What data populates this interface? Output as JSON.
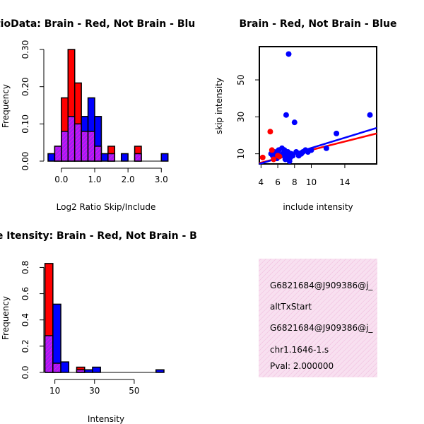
{
  "colors": {
    "red": "#ff0000",
    "blue": "#0000ff",
    "purple_hatch": "#a020f0",
    "info_bg": "#f8e0f0",
    "pval": "#cc0000"
  },
  "chart_data": [
    {
      "type": "bar",
      "title": "RatioData: Brain - Red, Not Brain - Blu",
      "xlabel": "Log2 Ratio Skip/Include",
      "ylabel": "Frequency",
      "xlim": [
        -0.4,
        3.1
      ],
      "ylim": [
        0,
        0.3
      ],
      "xticks": [
        "0.0",
        "1.0",
        "2.0",
        "3.0"
      ],
      "xtick_values": [
        0,
        1,
        2,
        3
      ],
      "yticks": [
        "0.00",
        "0.10",
        "0.20",
        "0.30"
      ],
      "ytick_values": [
        0,
        0.1,
        0.2,
        0.3
      ],
      "bin_start": -0.4,
      "bin_width": 0.2,
      "series": [
        {
          "name": "Brain",
          "color": "red",
          "values": [
            0.0,
            0.04,
            0.17,
            0.3,
            0.21,
            0.08,
            0.08,
            0.04,
            0.0,
            0.04,
            0.0,
            0.0,
            0.0,
            0.04,
            0.0,
            0.0,
            0.0,
            0.0
          ]
        },
        {
          "name": "Not Brain",
          "color": "blue",
          "values": [
            0.02,
            0.04,
            0.08,
            0.12,
            0.1,
            0.12,
            0.17,
            0.12,
            0.02,
            0.02,
            0.0,
            0.02,
            0.0,
            0.02,
            0.0,
            0.0,
            0.0,
            0.02
          ]
        }
      ]
    },
    {
      "type": "scatter",
      "title": "Brain - Red, Not Brain - Blue",
      "xlabel": "include intensity",
      "ylabel": "skip intensity",
      "xlim": [
        3.8,
        17.8
      ],
      "ylim": [
        4.5,
        68
      ],
      "xticks": [
        "4",
        "6",
        "8",
        "10",
        "14"
      ],
      "xtick_values": [
        4,
        6,
        8,
        10,
        14
      ],
      "yticks": [
        "10",
        "30",
        "50"
      ],
      "ytick_values": [
        10,
        30,
        50
      ],
      "series": [
        {
          "name": "Brain",
          "color": "red",
          "points": [
            [
              4.2,
              8.0
            ],
            [
              5.1,
              22.0
            ],
            [
              5.3,
              12.0
            ],
            [
              5.5,
              7.0
            ],
            [
              6.0,
              9.0
            ],
            [
              6.2,
              8.5
            ]
          ],
          "fit": {
            "x": [
              3.8,
              17.8
            ],
            "y": [
              5.0,
              21.0
            ]
          }
        },
        {
          "name": "Not Brain",
          "color": "blue",
          "points": [
            [
              7.3,
              64.0
            ],
            [
              7.0,
              31.0
            ],
            [
              8.0,
              27.0
            ],
            [
              17.0,
              31.0
            ],
            [
              13.0,
              21.0
            ],
            [
              11.8,
              13.0
            ],
            [
              5.2,
              10.0
            ],
            [
              5.4,
              9.0
            ],
            [
              5.6,
              11.0
            ],
            [
              5.8,
              8.0
            ],
            [
              6.0,
              10.0
            ],
            [
              6.1,
              12.0
            ],
            [
              6.3,
              9.0
            ],
            [
              6.5,
              13.0
            ],
            [
              6.6,
              10.0
            ],
            [
              6.8,
              12.0
            ],
            [
              7.0,
              9.0
            ],
            [
              7.2,
              11.0
            ],
            [
              7.5,
              8.0
            ],
            [
              7.6,
              10.0
            ],
            [
              7.8,
              9.0
            ],
            [
              8.2,
              11.0
            ],
            [
              8.5,
              9.0
            ],
            [
              8.8,
              10.0
            ],
            [
              9.0,
              11.0
            ],
            [
              9.3,
              12.0
            ],
            [
              9.6,
              11.0
            ],
            [
              6.9,
              7.0
            ],
            [
              7.4,
              6.0
            ],
            [
              5.9,
              7.5
            ],
            [
              10.0,
              12.0
            ]
          ],
          "fit": {
            "x": [
              3.8,
              17.8
            ],
            "y": [
              4.5,
              24.0
            ]
          }
        }
      ]
    },
    {
      "type": "bar",
      "title": "Line Itensity: Brain - Red, Not Brain - B",
      "xlabel": "Intensity",
      "ylabel": "Frequency",
      "xlim": [
        3,
        65
      ],
      "ylim": [
        0,
        0.84
      ],
      "xticks": [
        "10",
        "30",
        "50"
      ],
      "xtick_values": [
        10,
        30,
        50
      ],
      "yticks": [
        "0.0",
        "0.2",
        "0.4",
        "0.6",
        "0.8"
      ],
      "ytick_values": [
        0,
        0.2,
        0.4,
        0.6,
        0.8
      ],
      "bin_start": 5,
      "bin_width": 4,
      "series": [
        {
          "name": "Brain",
          "color": "red",
          "values": [
            0.83,
            0.07,
            0.0,
            0.0,
            0.04,
            0.0,
            0.0,
            0.0,
            0.0,
            0.0,
            0.0,
            0.0,
            0.0,
            0.0,
            0.0
          ]
        },
        {
          "name": "Not Brain",
          "color": "blue",
          "values": [
            0.28,
            0.52,
            0.08,
            0.0,
            0.02,
            0.02,
            0.04,
            0.0,
            0.0,
            0.0,
            0.0,
            0.0,
            0.0,
            0.0,
            0.02
          ]
        }
      ]
    }
  ],
  "info_box": {
    "line1": "G6821684@J909386@j_",
    "line2": "altTxStart",
    "line3": "G6821684@J909386@j_",
    "line4": "chr1.1646-1.s",
    "pval": "Pval: 2.000000"
  }
}
